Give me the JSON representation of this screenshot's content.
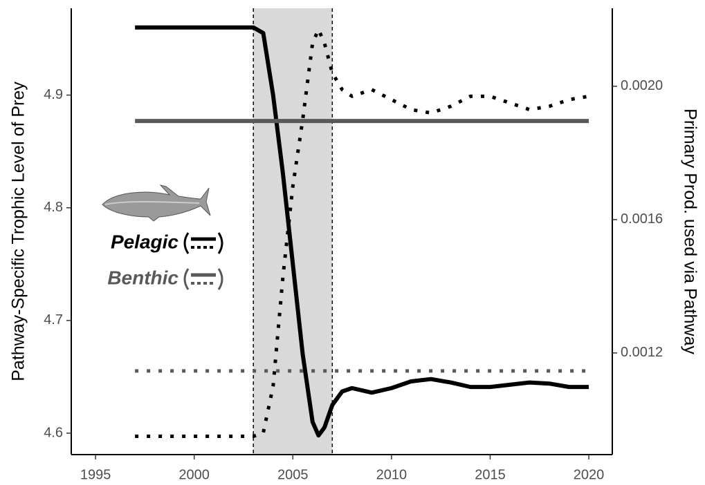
{
  "chart_data": {
    "type": "line",
    "y_label": "Pathway-Specific Trophic Level of Prey",
    "y2_label": "Primary Prod. used via Pathway",
    "x": [
      1997,
      2000,
      2003,
      2003.5,
      2004,
      2004.5,
      2005,
      2005.5,
      2006,
      2006.3,
      2006.6,
      2007,
      2007.5,
      2008,
      2009,
      2010,
      2011,
      2012,
      2013,
      2014,
      2015,
      2016,
      2017,
      2018,
      2019,
      2020
    ],
    "series": [
      {
        "name": "Pelagic",
        "color": "#000000",
        "dash": "solid",
        "axis": "y",
        "values": [
          4.96,
          4.96,
          4.96,
          4.955,
          4.9,
          4.83,
          4.75,
          4.67,
          4.61,
          4.598,
          4.605,
          4.625,
          4.637,
          4.64,
          4.636,
          4.64,
          4.646,
          4.648,
          4.645,
          4.641,
          4.641,
          4.643,
          4.645,
          4.644,
          4.641,
          4.641
        ]
      },
      {
        "name": "Benthic",
        "color": "#595959",
        "dash": "solid",
        "axis": "y",
        "values": [
          4.877,
          4.877,
          4.877,
          4.877,
          4.877,
          4.877,
          4.877,
          4.877,
          4.877,
          4.877,
          4.877,
          4.877,
          4.877,
          4.877,
          4.877,
          4.877,
          4.877,
          4.877,
          4.877,
          4.877,
          4.877,
          4.877,
          4.877,
          4.877,
          4.877,
          4.877
        ]
      },
      {
        "color": "#000000",
        "dash": "dotted",
        "axis": "y2",
        "values": [
          0.00095,
          0.00095,
          0.00095,
          0.00096,
          0.0011,
          0.00143,
          0.0017,
          0.0019,
          0.00213,
          0.00217,
          0.00213,
          0.00204,
          0.00199,
          0.00197,
          0.00199,
          0.00196,
          0.00193,
          0.00192,
          0.00194,
          0.00197,
          0.00197,
          0.00195,
          0.00193,
          0.00194,
          0.00196,
          0.00197
        ]
      },
      {
        "color": "#595959",
        "dash": "dotted",
        "axis": "y2",
        "values": [
          0.001146,
          0.001146,
          0.001146,
          0.001146,
          0.001146,
          0.001146,
          0.001146,
          0.001146,
          0.001146,
          0.001146,
          0.001146,
          0.001146,
          0.001146,
          0.001146,
          0.001146,
          0.001146,
          0.001146,
          0.001146,
          0.001146,
          0.001146,
          0.001146,
          0.001146,
          0.001146,
          0.001146,
          0.001146,
          0.001146
        ]
      }
    ],
    "shaded_region": [
      2003,
      2007
    ],
    "xlim": [
      1993.77,
      2021.19
    ],
    "xticks": [
      1995,
      2000,
      2005,
      2010,
      2015,
      2020
    ],
    "ylim": [
      4.581,
      4.977
    ],
    "yticks": [
      4.6,
      4.7,
      4.8,
      4.9
    ],
    "y2lim": [
      0.000895,
      0.002234
    ],
    "y2ticks": [
      {
        "value": 0.0012,
        "label": "0.0012"
      },
      {
        "value": 0.0016,
        "label": "0.0016"
      },
      {
        "value": 0.002,
        "label": "0.0020"
      }
    ]
  }
}
